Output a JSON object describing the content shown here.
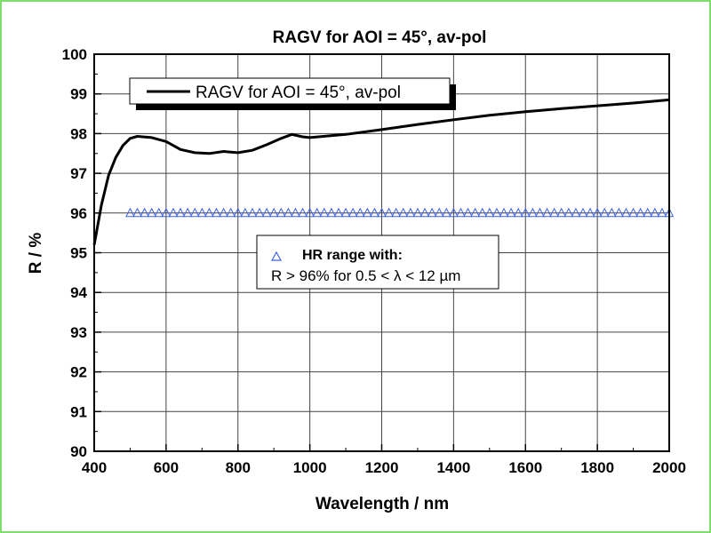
{
  "chart_data": {
    "type": "line",
    "title": "RAGV for AOI = 45°, av-pol",
    "xlabel": "Wavelength / nm",
    "ylabel": "R / %",
    "xlim": [
      400,
      2000
    ],
    "ylim": [
      90,
      100
    ],
    "xticks": [
      400,
      600,
      800,
      1000,
      1200,
      1400,
      1600,
      1800,
      2000
    ],
    "yticks": [
      90,
      91,
      92,
      93,
      94,
      95,
      96,
      97,
      98,
      99,
      100
    ],
    "grid": true,
    "colors": {
      "curve": "#000000",
      "markers": "#3a63e0",
      "border": "#7ee06b"
    },
    "series": [
      {
        "name": "RAGV for AOI = 45°, av-pol",
        "style": "line",
        "x": [
          400,
          420,
          440,
          460,
          480,
          500,
          520,
          560,
          600,
          640,
          680,
          720,
          760,
          800,
          840,
          880,
          920,
          950,
          980,
          1000,
          1100,
          1200,
          1300,
          1400,
          1500,
          1600,
          1700,
          1800,
          1900,
          2000
        ],
        "y": [
          95.2,
          96.2,
          96.95,
          97.4,
          97.7,
          97.88,
          97.93,
          97.9,
          97.8,
          97.6,
          97.52,
          97.5,
          97.55,
          97.52,
          97.58,
          97.72,
          97.88,
          97.98,
          97.92,
          97.9,
          97.98,
          98.1,
          98.23,
          98.35,
          98.46,
          98.55,
          98.63,
          98.7,
          98.77,
          98.85
        ]
      },
      {
        "name": "HR range with:",
        "name_line2": "R > 96% for 0.5 < λ < 12 µm",
        "style": "triangle-markers",
        "x": [
          500,
          520,
          540,
          560,
          580,
          600,
          620,
          640,
          660,
          680,
          700,
          720,
          740,
          760,
          780,
          800,
          820,
          840,
          860,
          880,
          900,
          920,
          940,
          960,
          980,
          1000,
          1020,
          1040,
          1060,
          1080,
          1100,
          1120,
          1140,
          1160,
          1180,
          1200,
          1220,
          1240,
          1260,
          1280,
          1300,
          1320,
          1340,
          1360,
          1380,
          1400,
          1420,
          1440,
          1460,
          1480,
          1500,
          1520,
          1540,
          1560,
          1580,
          1600,
          1620,
          1640,
          1660,
          1680,
          1700,
          1720,
          1740,
          1760,
          1780,
          1800,
          1820,
          1840,
          1860,
          1880,
          1900,
          1920,
          1940,
          1960,
          1980,
          2000
        ],
        "y_constant": 96
      }
    ],
    "legend_placement": "top-left; second legend center"
  }
}
